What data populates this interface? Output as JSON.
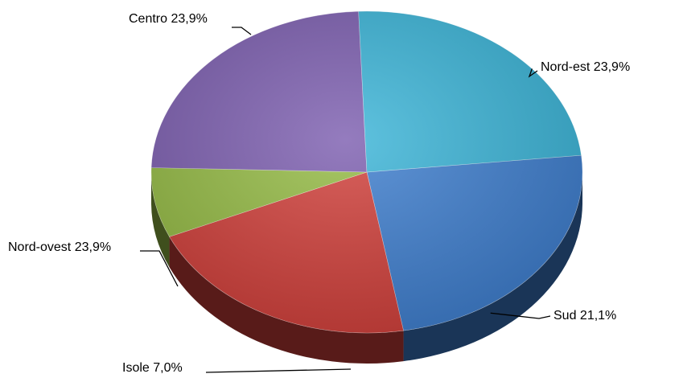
{
  "chart_data": {
    "type": "pie",
    "style": "3d",
    "title": "",
    "slices": [
      {
        "name": "Nord-est",
        "value": 23.9,
        "label": "Nord-est 23,9%",
        "color": "#3f7fcf"
      },
      {
        "name": "Sud",
        "value": 21.1,
        "label": "Sud 21,1%",
        "color": "#d1403b"
      },
      {
        "name": "Isole",
        "value": 7.0,
        "label": "Isole 7,0%",
        "color": "#95bb45"
      },
      {
        "name": "Nord-ovest",
        "value": 23.9,
        "label": "Nord-ovest 23,9%",
        "color": "#7d5fb0"
      },
      {
        "name": "Centro",
        "value": 23.9,
        "label": "Centro 23,9%",
        "color": "#3cb5d8"
      }
    ],
    "legend": "none",
    "labels": "outside-with-leader-lines"
  }
}
